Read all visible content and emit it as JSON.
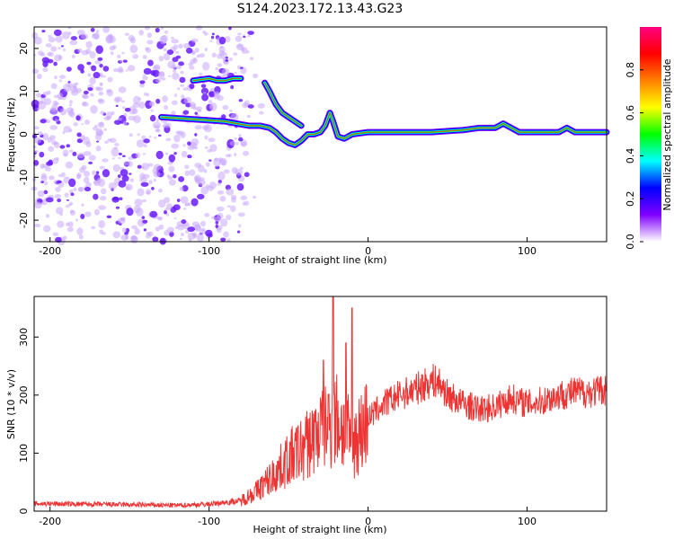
{
  "chart_data": [
    {
      "type": "heatmap",
      "title": "S124.2023.172.13.43.G23",
      "xlabel": "Height of straight line (km)",
      "ylabel": "Frequency (Hz)",
      "xlim": [
        -210,
        150
      ],
      "ylim": [
        -25,
        25
      ],
      "xticks": [
        -200,
        -100,
        0,
        100
      ],
      "yticks": [
        -20,
        -10,
        0,
        10,
        20
      ],
      "colorbar": {
        "label": "Normalized spectral amplitude",
        "range": [
          0,
          1
        ],
        "ticks": [
          "0.0",
          "0.2",
          "0.4",
          "0.6",
          "0.8"
        ],
        "colormap": [
          "#ffffff",
          "#8000ff",
          "#0000ff",
          "#00ffff",
          "#00ff00",
          "#ffff00",
          "#ff8000",
          "#ff0000",
          "#ff0080"
        ]
      },
      "tone_trace": {
        "x": [
          -130,
          -110,
          -90,
          -75,
          -68,
          -62,
          -58,
          -54,
          -50,
          -46,
          -42,
          -38,
          -34,
          -30,
          -27,
          -24,
          -22,
          -19,
          -15,
          -10,
          0,
          20,
          40,
          60,
          70,
          80,
          85,
          90,
          95,
          100,
          110,
          120,
          125,
          130,
          150
        ],
        "y": [
          4,
          3.5,
          3,
          2,
          2,
          1.5,
          0.5,
          -1,
          -2,
          -2.5,
          -1.5,
          0,
          0,
          0.5,
          2,
          5,
          3,
          -0.5,
          -1,
          0,
          0.5,
          0.5,
          0.5,
          1,
          1.5,
          1.5,
          2.5,
          1.5,
          0.5,
          0.5,
          0.5,
          0.5,
          1.5,
          0.5,
          0.5
        ]
      },
      "upper_trace": {
        "x": [
          -110,
          -100,
          -95,
          -90,
          -85,
          -80
        ],
        "y": [
          12.5,
          13,
          12.5,
          12.5,
          13,
          13
        ]
      },
      "diagonal_trace": {
        "x": [
          -65,
          -62,
          -58,
          -54,
          -50,
          -46,
          -42
        ],
        "y": [
          12,
          10,
          7,
          5,
          4,
          3,
          2
        ]
      }
    },
    {
      "type": "line",
      "title": "",
      "xlabel": "Height of straight line (km)",
      "ylabel": "SNR (10 * v/v)",
      "xlim": [
        -210,
        150
      ],
      "ylim": [
        0,
        370
      ],
      "xticks": [
        -200,
        -100,
        0,
        100
      ],
      "yticks": [
        0,
        100,
        200,
        300
      ],
      "color": "#ee3333",
      "envelope": {
        "x": [
          -210,
          -120,
          -100,
          -80,
          -70,
          -60,
          -50,
          -40,
          -30,
          -25,
          -20,
          -15,
          -10,
          -5,
          0,
          10,
          20,
          30,
          40,
          45,
          50,
          60,
          70,
          80,
          90,
          100,
          110,
          120,
          130,
          140,
          150
        ],
        "y": [
          13,
          10,
          12,
          18,
          35,
          60,
          90,
          110,
          140,
          150,
          160,
          140,
          120,
          135,
          160,
          185,
          200,
          210,
          225,
          220,
          200,
          185,
          175,
          180,
          195,
          185,
          190,
          200,
          205,
          205,
          210
        ]
      },
      "spikes": [
        {
          "x": -22,
          "y": 370
        },
        {
          "x": -10,
          "y": 350
        },
        {
          "x": -14,
          "y": 290
        },
        {
          "x": -28,
          "y": 260
        }
      ]
    }
  ]
}
